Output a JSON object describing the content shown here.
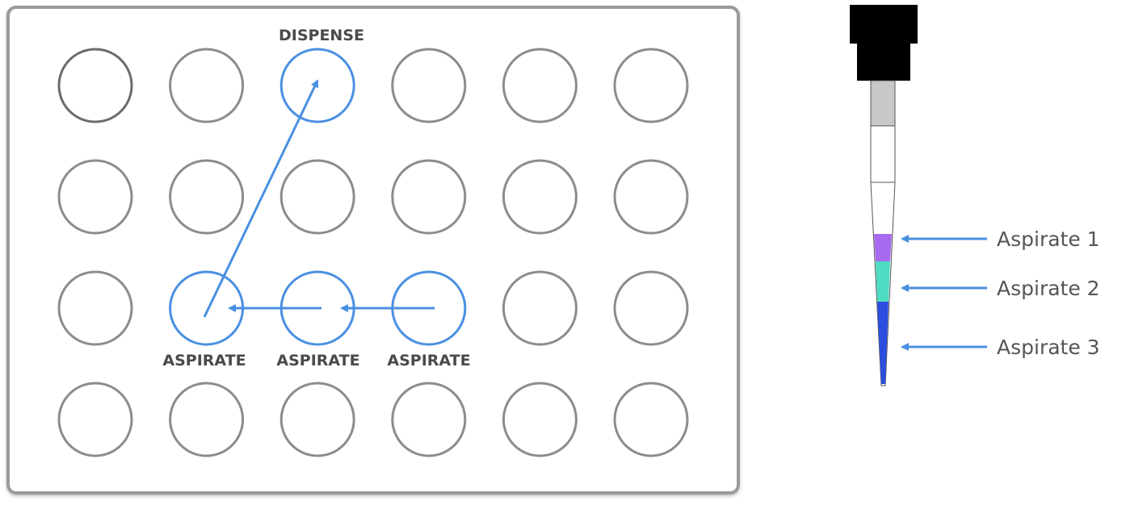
{
  "plate": {
    "rows": 4,
    "cols": 6,
    "well_color": "#8c8c8c",
    "first_well_color": "#6b6b6b",
    "highlight_color": "#4a90e2",
    "highlighted_wells": [
      [
        0,
        2
      ],
      [
        2,
        1
      ],
      [
        2,
        2
      ],
      [
        2,
        3
      ]
    ],
    "dispense_label": "DISPENSE",
    "aspirate_labels": [
      "ASPIRATE",
      "ASPIRATE",
      "ASPIRATE"
    ]
  },
  "pipette": {
    "bands": [
      {
        "name": "Aspirate 1",
        "color": "#a86bf0"
      },
      {
        "name": "Aspirate 2",
        "color": "#4fdcc2"
      },
      {
        "name": "Aspirate 3",
        "color": "#2b4de0"
      }
    ],
    "labels": [
      "Aspirate 1",
      "Aspirate 2",
      "Aspirate 3"
    ],
    "arrow_color": "#4a90e2"
  }
}
